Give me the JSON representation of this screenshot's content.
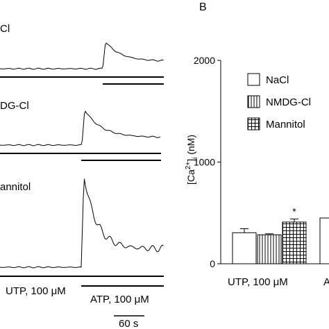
{
  "panel_b_label": "B",
  "traces": [
    {
      "label": "Cl",
      "agonist": "ATP"
    },
    {
      "label": "DG-Cl",
      "agonist": "ATP"
    },
    {
      "label": "annitol",
      "agonist": "UTP"
    }
  ],
  "stimulus_labels": {
    "utp": "UTP, 100 μM",
    "atp": "ATP, 100 μM"
  },
  "scale_bar_label": "60 s",
  "chart_data": {
    "type": "bar",
    "ylabel_main": "[Ca",
    "ylabel_sup": "2+",
    "ylabel_close": "]",
    "ylabel_sub": "i",
    "ylabel_unit": " (nM)",
    "ylim": [
      0,
      2000
    ],
    "yticks": [
      "0",
      "1000",
      "2000"
    ],
    "groups": [
      "UTP, 100 μM",
      "A"
    ],
    "series": [
      {
        "name": "NaCl",
        "pattern": "none",
        "values": [
          305,
          450
        ],
        "errors": [
          40,
          0
        ]
      },
      {
        "name": "NMDG-Cl",
        "pattern": "vertical",
        "values": [
          285,
          null
        ],
        "errors": [
          10,
          0
        ]
      },
      {
        "name": "Mannitol",
        "pattern": "grid",
        "values": [
          410,
          null
        ],
        "errors": [
          30,
          0
        ]
      }
    ],
    "annotations": [
      {
        "text": "*",
        "series": 2,
        "group": 0
      }
    ]
  }
}
